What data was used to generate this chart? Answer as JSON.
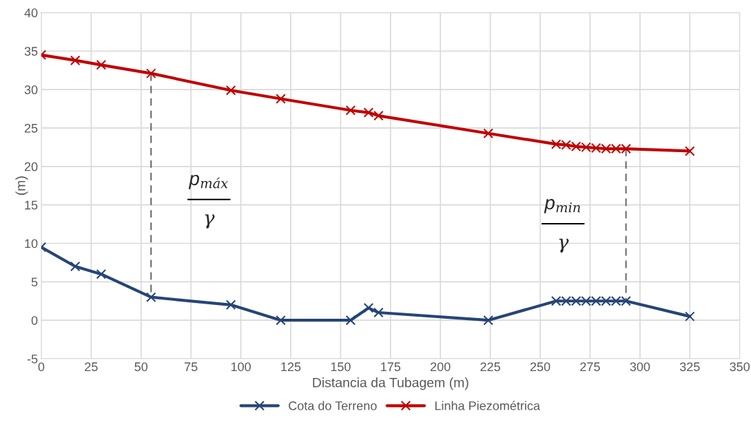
{
  "chart_data": {
    "type": "line",
    "xlabel": "Distancia da Tubagem (m)",
    "ylabel": "(m)",
    "xlim": [
      0,
      350
    ],
    "xticks": [
      0,
      25,
      50,
      75,
      100,
      125,
      150,
      175,
      200,
      225,
      250,
      275,
      300,
      325,
      350
    ],
    "ylim": [
      -5,
      40
    ],
    "yticks": [
      -5,
      0,
      5,
      10,
      15,
      20,
      25,
      30,
      35,
      40
    ],
    "grid": true,
    "legend": "bottom",
    "marker": "cross",
    "series": [
      {
        "name": "Cota do Terreno",
        "color": "#264478",
        "x": [
          0,
          17,
          30,
          55,
          95,
          120,
          155,
          164,
          169,
          224,
          258,
          263,
          268,
          273,
          278,
          283,
          288,
          293,
          325
        ],
        "values": [
          9.5,
          7.0,
          6.0,
          3.0,
          2.0,
          0,
          0,
          1.6,
          1.0,
          0,
          2.5,
          2.5,
          2.5,
          2.5,
          2.5,
          2.5,
          2.5,
          2.5,
          0.5
        ]
      },
      {
        "name": "Linha Piezométrica",
        "color": "#c00000",
        "x": [
          0,
          17,
          30,
          55,
          95,
          120,
          155,
          164,
          169,
          224,
          258,
          263,
          268,
          273,
          278,
          283,
          288,
          293,
          325
        ],
        "values": [
          34.5,
          33.8,
          33.2,
          32.1,
          29.9,
          28.8,
          27.3,
          27.0,
          26.6,
          24.3,
          22.9,
          22.8,
          22.6,
          22.5,
          22.4,
          22.3,
          22.3,
          22.3,
          22.0
        ]
      },
      {
        "color": "#595959",
        "x": [
          55,
          55
        ],
        "values": [
          3.0,
          32.1
        ],
        "marker": "none",
        "line_style": "dashed"
      },
      {
        "color": "#595959",
        "x": [
          293,
          293
        ],
        "values": [
          2.5,
          22.3
        ],
        "marker": "none",
        "line_style": "dashed"
      }
    ],
    "annotations": [
      "p$_{máx}$",
      "γ",
      "p$_{min}$",
      "γ"
    ]
  }
}
